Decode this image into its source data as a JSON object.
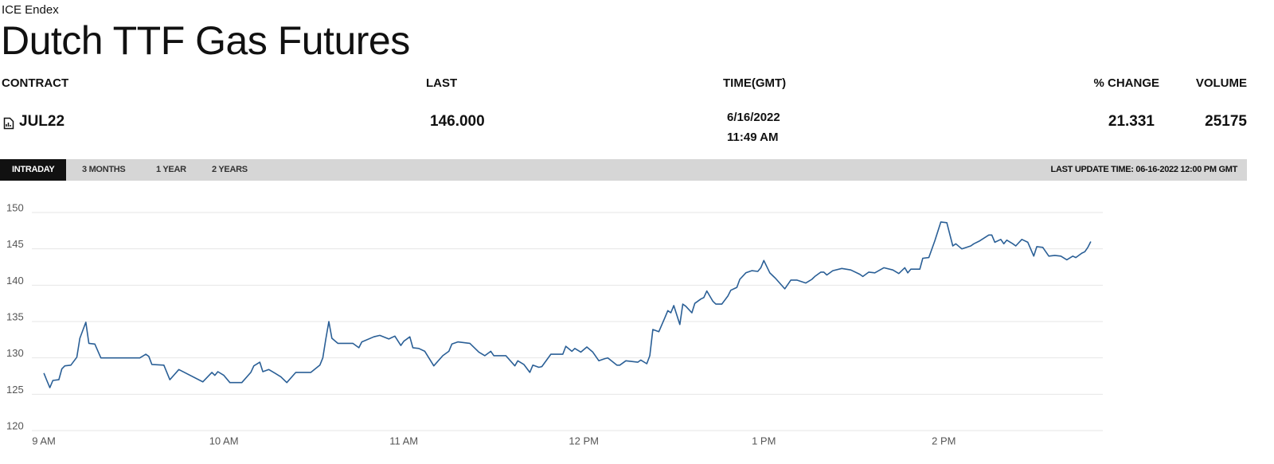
{
  "header": {
    "source": "ICE Endex",
    "title": "Dutch TTF Gas Futures"
  },
  "table": {
    "columns": [
      "CONTRACT",
      "LAST",
      "TIME(GMT)",
      "% CHANGE",
      "VOLUME"
    ],
    "quote": {
      "contract": "JUL22",
      "last": "146.000",
      "date": "6/16/2022",
      "time": "11:49 AM",
      "change": "21.331",
      "volume": "25175"
    }
  },
  "tabs": {
    "items": [
      "INTRADAY",
      "3 MONTHS",
      "1 YEAR",
      "2 YEARS"
    ],
    "active": 0,
    "last_update": "LAST UPDATE TIME: 06-16-2022 12:00 PM GMT"
  },
  "chart_data": {
    "type": "line",
    "color": "#2a5f96",
    "grid": true,
    "xlim": [
      536,
      893
    ],
    "ylim": [
      120,
      150
    ],
    "xticks": [
      {
        "value": 540,
        "label": "9 AM"
      },
      {
        "value": 600,
        "label": "10 AM"
      },
      {
        "value": 660,
        "label": "11 AM"
      },
      {
        "value": 720,
        "label": "12 PM"
      },
      {
        "value": 780,
        "label": "1 PM"
      },
      {
        "value": 840,
        "label": "2 PM"
      }
    ],
    "yticks": [
      120,
      125,
      130,
      135,
      140,
      145,
      150
    ],
    "x": [
      540,
      541,
      542,
      543,
      545,
      546,
      547,
      549,
      551,
      552,
      554,
      555,
      557,
      559,
      572,
      574,
      575,
      576,
      580,
      582,
      585,
      593,
      596,
      597,
      598,
      600,
      602,
      606,
      609,
      610,
      612,
      613,
      615,
      617,
      619,
      621,
      624,
      629,
      632,
      633,
      634,
      635,
      636,
      638,
      643,
      645,
      646,
      650,
      652,
      655,
      657,
      659,
      660,
      662,
      663,
      665,
      667,
      670,
      673,
      675,
      676,
      678,
      682,
      685,
      687,
      689,
      690,
      694,
      697,
      698,
      700,
      702,
      703,
      705,
      706,
      709,
      713,
      714,
      716,
      717,
      719,
      721,
      723,
      725,
      727,
      728,
      731,
      732,
      734,
      738,
      739,
      741,
      742,
      743,
      745,
      747,
      748,
      749,
      750,
      752,
      753,
      754,
      756,
      757,
      759,
      760,
      761,
      763,
      764,
      766,
      768,
      769,
      771,
      772,
      774,
      776,
      778,
      779,
      780,
      782,
      783,
      784,
      787,
      789,
      791,
      794,
      796,
      797,
      799,
      800,
      801,
      803,
      806,
      809,
      812,
      813,
      815,
      817,
      820,
      823,
      825,
      827,
      828,
      829,
      832,
      833,
      835,
      837,
      839,
      841,
      843,
      844,
      846,
      849,
      850,
      852,
      855,
      856,
      857,
      859,
      860,
      861,
      863,
      864,
      866,
      868,
      870,
      871,
      873,
      875,
      877,
      879,
      881,
      883,
      884,
      886,
      887,
      888,
      889
    ],
    "values": [
      127.9,
      126.9,
      125.9,
      126.9,
      127.0,
      128.5,
      128.9,
      129.0,
      130.1,
      132.7,
      134.9,
      132.0,
      131.9,
      130.0,
      130.0,
      130.5,
      130.2,
      129.1,
      129.0,
      127.0,
      128.4,
      126.7,
      128.0,
      127.6,
      128.1,
      127.6,
      126.6,
      126.6,
      128.0,
      128.9,
      129.4,
      128.1,
      128.4,
      127.9,
      127.4,
      126.6,
      128.0,
      128.0,
      129.0,
      130.0,
      132.6,
      135.0,
      132.7,
      132.0,
      132.0,
      131.4,
      132.2,
      132.9,
      133.1,
      132.6,
      133.0,
      131.7,
      132.3,
      132.9,
      131.4,
      131.3,
      130.9,
      128.9,
      130.3,
      130.9,
      131.9,
      132.2,
      132.0,
      130.8,
      130.3,
      130.9,
      130.3,
      130.3,
      128.9,
      129.6,
      129.1,
      128.0,
      129.0,
      128.7,
      128.8,
      130.5,
      130.5,
      131.6,
      130.9,
      131.3,
      130.8,
      131.5,
      130.8,
      129.6,
      129.9,
      130.0,
      129.0,
      129.0,
      129.6,
      129.4,
      129.7,
      129.2,
      130.3,
      133.9,
      133.6,
      135.5,
      136.5,
      136.2,
      137.2,
      134.6,
      137.4,
      137.1,
      136.2,
      137.5,
      138.1,
      138.3,
      139.2,
      137.8,
      137.4,
      137.4,
      138.5,
      139.3,
      139.7,
      140.8,
      141.7,
      142.0,
      141.9,
      142.4,
      143.4,
      141.7,
      141.3,
      140.9,
      139.5,
      140.7,
      140.7,
      140.3,
      140.8,
      141.2,
      141.8,
      141.8,
      141.4,
      142.0,
      142.3,
      142.1,
      141.5,
      141.2,
      141.8,
      141.7,
      142.4,
      142.1,
      141.6,
      142.4,
      141.7,
      142.2,
      142.2,
      143.7,
      143.8,
      146.1,
      148.7,
      148.6,
      145.4,
      145.7,
      145.0,
      145.4,
      145.7,
      146.1,
      146.9,
      146.9,
      145.9,
      146.3,
      145.7,
      146.2,
      145.7,
      145.4,
      146.3,
      145.9,
      144.0,
      145.3,
      145.2,
      144.0,
      144.1,
      144.0,
      143.5,
      144.0,
      143.8,
      144.4,
      144.6,
      145.2,
      146
    ]
  }
}
